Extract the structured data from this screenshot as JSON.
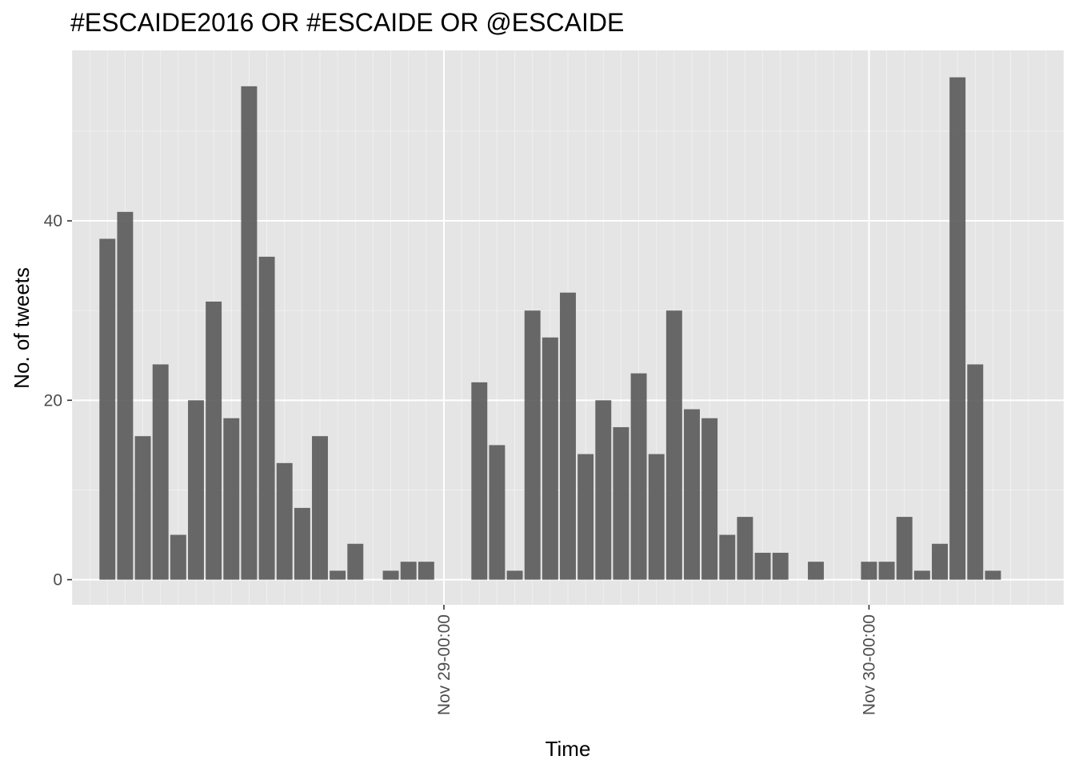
{
  "chart_data": {
    "type": "bar",
    "title": "#ESCAIDE2016 OR #ESCAIDE OR @ESCAIDE",
    "xlabel": "Time",
    "ylabel": "No. of tweets",
    "x_unit": "hour",
    "x_start": "Nov 28 05:00",
    "x": [
      "Nov 28 05:00",
      "Nov 28 06:00",
      "Nov 28 07:00",
      "Nov 28 08:00",
      "Nov 28 09:00",
      "Nov 28 10:00",
      "Nov 28 11:00",
      "Nov 28 12:00",
      "Nov 28 13:00",
      "Nov 28 14:00",
      "Nov 28 15:00",
      "Nov 28 16:00",
      "Nov 28 17:00",
      "Nov 28 18:00",
      "Nov 28 19:00",
      "Nov 28 20:00",
      "Nov 28 21:00",
      "Nov 28 22:00",
      "Nov 28 23:00",
      "Nov 29 00:00",
      "Nov 29 01:00",
      "Nov 29 02:00",
      "Nov 29 03:00",
      "Nov 29 04:00",
      "Nov 29 05:00",
      "Nov 29 06:00",
      "Nov 29 07:00",
      "Nov 29 08:00",
      "Nov 29 09:00",
      "Nov 29 10:00",
      "Nov 29 11:00",
      "Nov 29 12:00",
      "Nov 29 13:00",
      "Nov 29 14:00",
      "Nov 29 15:00",
      "Nov 29 16:00",
      "Nov 29 17:00",
      "Nov 29 18:00",
      "Nov 29 19:00",
      "Nov 29 20:00",
      "Nov 29 21:00",
      "Nov 29 22:00",
      "Nov 29 23:00",
      "Nov 30 00:00",
      "Nov 30 01:00",
      "Nov 30 02:00",
      "Nov 30 03:00",
      "Nov 30 04:00",
      "Nov 30 05:00",
      "Nov 30 06:00",
      "Nov 30 07:00",
      "Nov 30 08:00",
      "Nov 30 09:00",
      "Nov 30 10:00",
      "Nov 30 11:00",
      "Nov 30 12:00"
    ],
    "values": [
      38,
      41,
      16,
      24,
      5,
      20,
      31,
      18,
      55,
      36,
      13,
      8,
      16,
      1,
      4,
      0,
      1,
      2,
      2,
      0,
      0,
      22,
      15,
      1,
      30,
      27,
      32,
      14,
      20,
      17,
      23,
      14,
      30,
      19,
      18,
      5,
      7,
      3,
      3,
      0,
      2,
      0,
      0,
      2,
      2,
      7,
      1,
      4,
      56,
      24,
      1,
      0,
      0,
      0,
      0,
      0
    ],
    "xlim": [
      "Nov 28 03:00",
      "Nov 30 11:00"
    ],
    "ylim": [
      -2.8,
      59
    ],
    "y_ticks": [
      0,
      20,
      40
    ],
    "y_tick_labels": [
      "0",
      "20",
      "40"
    ],
    "x_ticks": [
      "Nov 29 00:00",
      "Nov 30 00:00"
    ],
    "x_tick_labels": [
      "Nov 29-00:00",
      "Nov 30-00:00"
    ],
    "grid": true,
    "bar_color": "#595959",
    "panel_background": "#e5e5e5",
    "grid_color": "#ffffff"
  }
}
